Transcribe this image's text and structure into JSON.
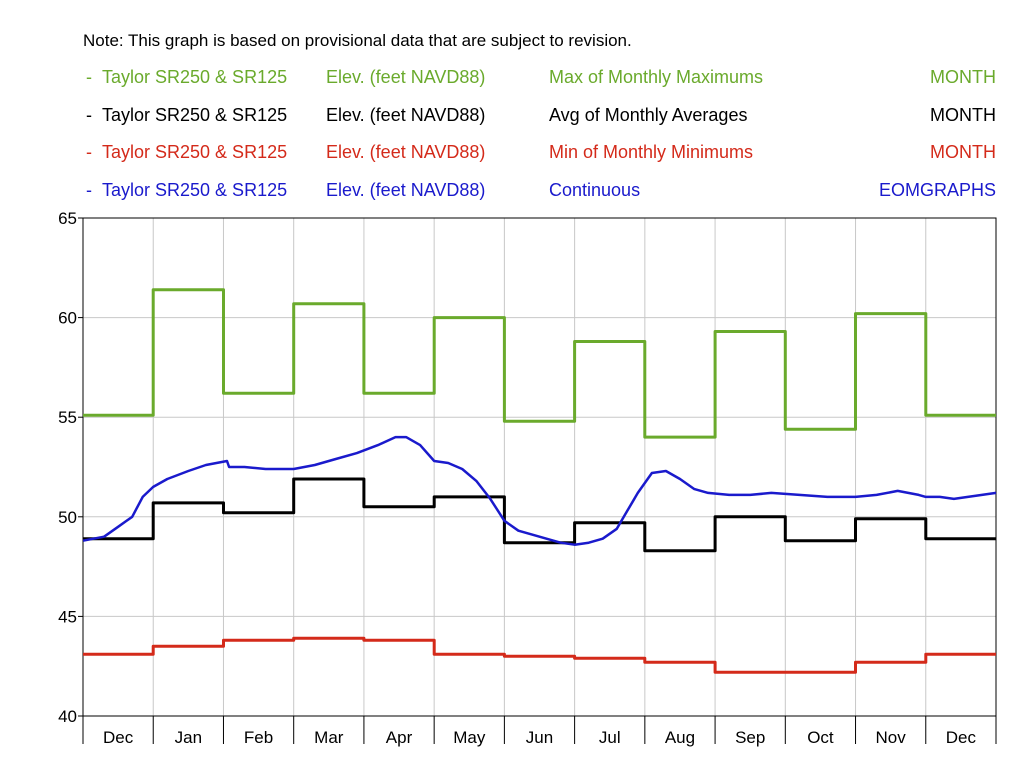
{
  "note": "Note: This graph is based on provisional data that are subject to revision.",
  "legend": [
    {
      "dash": "-",
      "site": "Taylor SR250 & SR125",
      "parameter": "Elev. (feet NAVD88)",
      "statistic": "Max of Monthly Maximums",
      "interval": "MONTH",
      "color": "#6aaa2c"
    },
    {
      "dash": "-",
      "site": "Taylor SR250 & SR125",
      "parameter": "Elev. (feet NAVD88)",
      "statistic": "Avg of Monthly Averages",
      "interval": "MONTH",
      "color": "#000000"
    },
    {
      "dash": "-",
      "site": "Taylor SR250 & SR125",
      "parameter": "Elev. (feet NAVD88)",
      "statistic": "Min of Monthly Minimums",
      "interval": "MONTH",
      "color": "#d42a1a"
    },
    {
      "dash": "-",
      "site": "Taylor SR250 & SR125",
      "parameter": "Elev. (feet NAVD88)",
      "statistic": "Continuous",
      "interval": "EOMGRAPHS",
      "color": "#1a1acc"
    }
  ],
  "chart_data": {
    "type": "line",
    "categories": [
      "Dec",
      "Jan",
      "Feb",
      "Mar",
      "Apr",
      "May",
      "Jun",
      "Jul",
      "Aug",
      "Sep",
      "Oct",
      "Nov",
      "Dec"
    ],
    "ylim": [
      40,
      65
    ],
    "yticks": [
      40,
      45,
      50,
      55,
      60,
      65
    ],
    "grid": true,
    "series": [
      {
        "name": "Max of Monthly Maximums",
        "style": "step",
        "color": "#6aaa2c",
        "values": [
          55.1,
          61.4,
          56.2,
          60.7,
          56.2,
          60.0,
          54.8,
          58.8,
          54.0,
          59.3,
          54.4,
          60.2,
          55.1
        ]
      },
      {
        "name": "Avg of Monthly Averages",
        "style": "step",
        "color": "#000000",
        "values": [
          48.9,
          50.7,
          50.2,
          51.9,
          50.5,
          51.0,
          48.7,
          49.7,
          48.3,
          50.0,
          48.8,
          49.9,
          48.9
        ]
      },
      {
        "name": "Min of Monthly Minimums",
        "style": "step",
        "color": "#d42a1a",
        "values": [
          43.1,
          43.5,
          43.8,
          43.9,
          43.8,
          43.1,
          43.0,
          42.9,
          42.7,
          42.2,
          42.2,
          42.7,
          43.1
        ]
      },
      {
        "name": "Continuous",
        "style": "line",
        "color": "#1a1acc",
        "x": [
          0.0,
          0.15,
          0.3,
          0.5,
          0.7,
          0.85,
          1.0,
          1.2,
          1.5,
          1.75,
          2.05,
          2.08,
          2.3,
          2.6,
          3.0,
          3.3,
          3.6,
          3.9,
          4.2,
          4.45,
          4.6,
          4.8,
          5.0,
          5.2,
          5.4,
          5.6,
          5.8,
          6.0,
          6.2,
          6.4,
          6.6,
          6.8,
          7.0,
          7.2,
          7.4,
          7.6,
          7.75,
          7.9,
          8.1,
          8.3,
          8.5,
          8.7,
          8.9,
          9.2,
          9.5,
          9.8,
          10.2,
          10.6,
          11.0,
          11.3,
          11.6,
          11.9,
          12.0,
          12.2,
          12.4,
          12.6,
          12.8,
          13.0
        ],
        "values": [
          48.8,
          48.9,
          49.0,
          49.5,
          50.0,
          51.0,
          51.5,
          51.9,
          52.3,
          52.6,
          52.8,
          52.5,
          52.5,
          52.4,
          52.4,
          52.6,
          52.9,
          53.2,
          53.6,
          54.0,
          54.0,
          53.6,
          52.8,
          52.7,
          52.4,
          51.8,
          50.9,
          49.8,
          49.3,
          49.1,
          48.9,
          48.7,
          48.6,
          48.7,
          48.9,
          49.4,
          50.3,
          51.2,
          52.2,
          52.3,
          51.9,
          51.4,
          51.2,
          51.1,
          51.1,
          51.2,
          51.1,
          51.0,
          51.0,
          51.1,
          51.3,
          51.1,
          51.0,
          51.0,
          50.9,
          51.0,
          51.1,
          51.2
        ]
      }
    ]
  }
}
